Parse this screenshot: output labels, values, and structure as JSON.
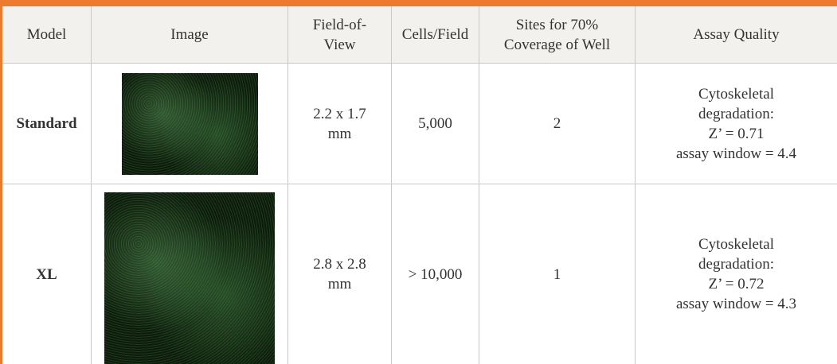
{
  "table": {
    "headers": [
      [
        "Model"
      ],
      [
        "Image"
      ],
      [
        "Field-of-",
        "View"
      ],
      [
        "Cells/Field"
      ],
      [
        "Sites for 70%",
        "Coverage of Well"
      ],
      [
        "Assay Quality"
      ]
    ],
    "rows": [
      {
        "model": "Standard",
        "fov": [
          "2.2 x 1.7",
          "mm"
        ],
        "cells": "5,000",
        "sites": "2",
        "quality": [
          "Cytoskeletal",
          "degradation:",
          "Z’ = 0.71",
          "assay window = 4.4"
        ]
      },
      {
        "model": "XL",
        "fov": [
          "2.8 x 2.8",
          "mm"
        ],
        "cells": "> 10,000",
        "sites": "1",
        "quality": [
          "Cytoskeletal",
          "degradation:",
          "Z’ = 0.72",
          "assay window = 4.3"
        ]
      }
    ]
  }
}
